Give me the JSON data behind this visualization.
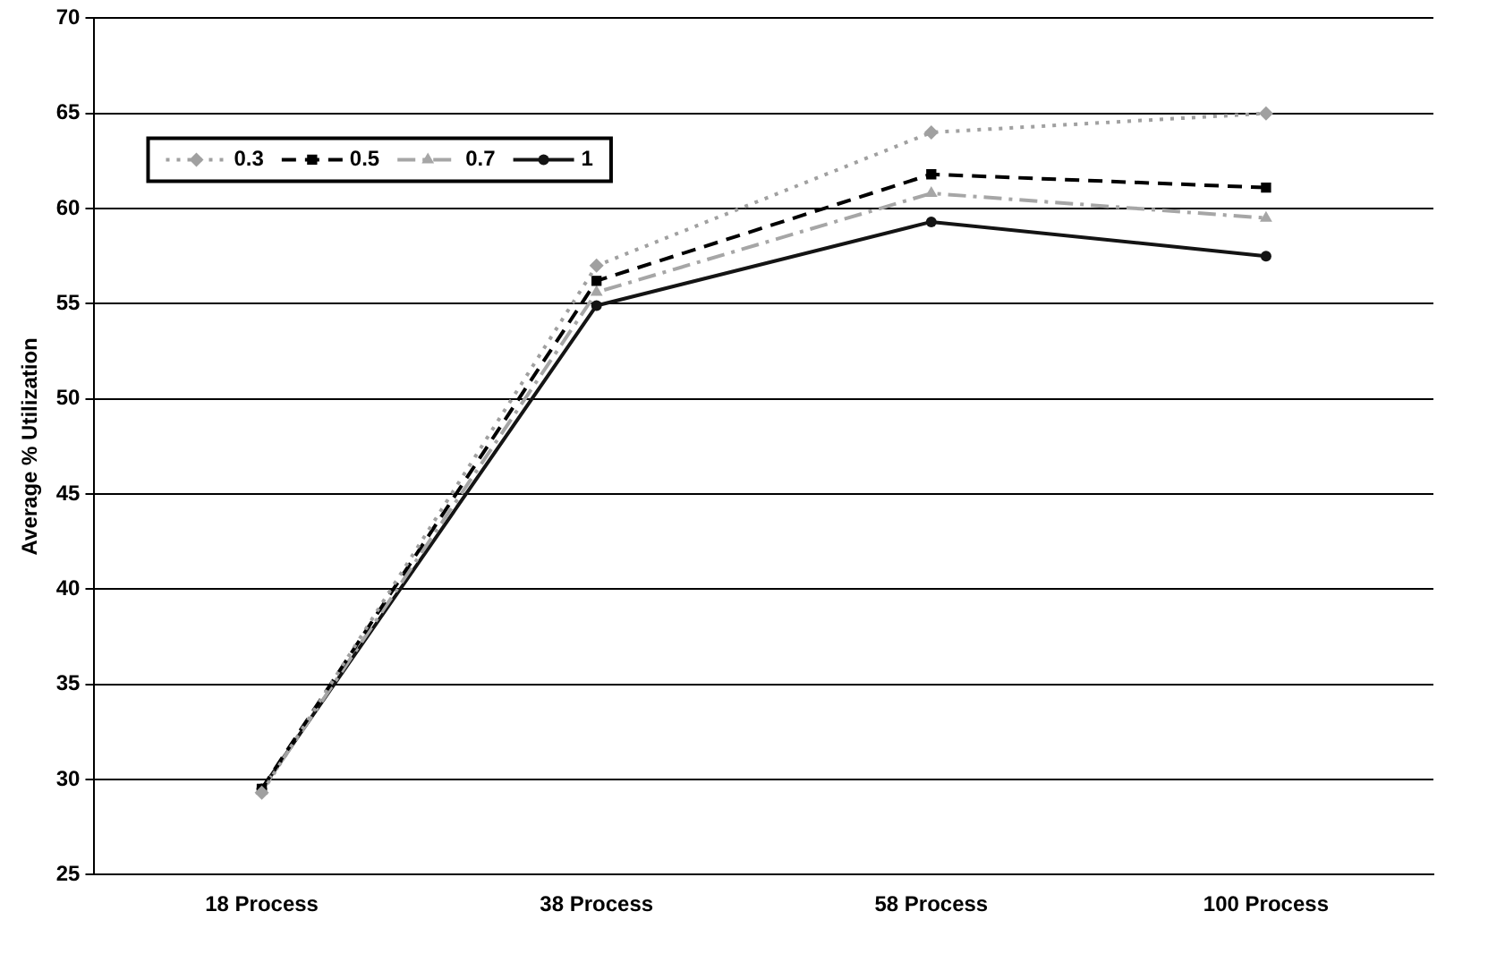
{
  "chart_data": {
    "type": "line",
    "ylabel": "Average % Utilization",
    "categories": [
      "18 Process",
      "38 Process",
      "58 Process",
      "100 Process"
    ],
    "series": [
      {
        "name": "0.3",
        "color": "#a0a0a0",
        "marker": "diamond",
        "line_style": "dotted",
        "values": [
          29.3,
          57.0,
          64.0,
          65.0
        ]
      },
      {
        "name": "0.5",
        "color": "#000000",
        "marker": "square",
        "line_style": "dashed",
        "values": [
          29.5,
          56.2,
          61.8,
          61.1
        ]
      },
      {
        "name": "0.7",
        "color": "#a6a6a6",
        "marker": "triangle",
        "line_style": "dashdot",
        "values": [
          29.4,
          55.6,
          60.8,
          59.5
        ]
      },
      {
        "name": "1",
        "color": "#141414",
        "marker": "circle",
        "line_style": "solid",
        "values": [
          29.5,
          54.9,
          59.3,
          57.5
        ]
      }
    ],
    "ylim": [
      25,
      70
    ],
    "yticks": [
      25,
      30,
      35,
      40,
      45,
      50,
      55,
      60,
      65,
      70
    ],
    "grid": "y",
    "legend": "top left"
  }
}
